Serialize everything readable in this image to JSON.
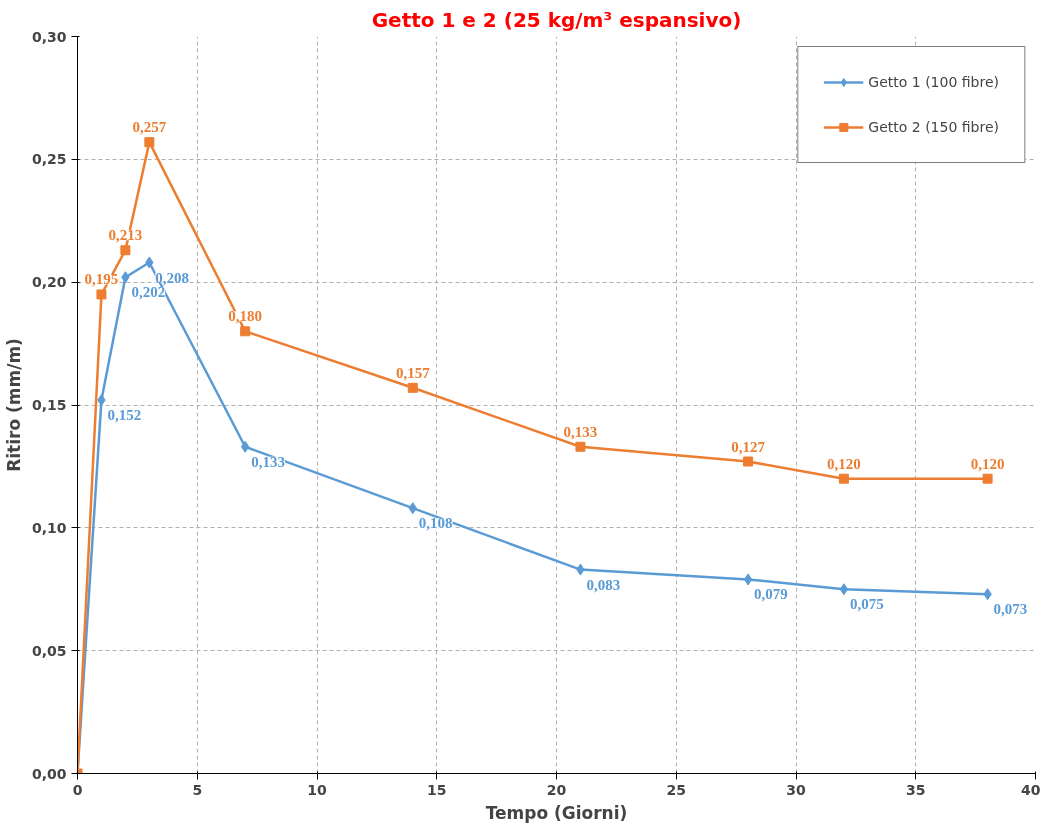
{
  "chart_data": {
    "type": "line",
    "title": "Getto 1 e 2 (25 kg/m³ espansivo)",
    "xlabel": "Tempo (Giorni)",
    "ylabel": "Ritiro (mm/m)",
    "x": [
      0,
      1,
      2,
      3,
      7,
      14,
      21,
      28,
      32,
      38
    ],
    "series": [
      {
        "name": "Getto 1 (100 fibre)",
        "color": "#5b9bd5",
        "marker": "diamond",
        "values": [
          0,
          0.152,
          0.202,
          0.208,
          0.133,
          0.108,
          0.083,
          0.079,
          0.075,
          0.073
        ],
        "value_labels": [
          null,
          "0,152",
          "0,202",
          "0,208",
          "0,133",
          "0,108",
          "0,083",
          "0,079",
          "0,075",
          "0,073"
        ]
      },
      {
        "name": "Getto 2 (150 fibre)",
        "color": "#ed7d31",
        "marker": "square",
        "values": [
          0,
          0.195,
          0.213,
          0.257,
          0.18,
          0.157,
          0.133,
          0.127,
          0.12,
          0.12
        ],
        "value_labels": [
          null,
          "0,195",
          "0,213",
          "0,257",
          "0,180",
          "0,157",
          "0,133",
          "0,127",
          "0,120",
          "0,120"
        ]
      }
    ],
    "xlim": [
      0,
      40
    ],
    "xticks": [
      0,
      5,
      10,
      15,
      20,
      25,
      30,
      35,
      40
    ],
    "ylim": [
      0,
      0.3
    ],
    "yticks": [
      {
        "value": 0,
        "label": "0,00"
      },
      {
        "value": 0.05,
        "label": "0,05"
      },
      {
        "value": 0.1,
        "label": "0,10"
      },
      {
        "value": 0.15,
        "label": "0,15"
      },
      {
        "value": 0.2,
        "label": "0,20"
      },
      {
        "value": 0.25,
        "label": "0,25"
      },
      {
        "value": 0.3,
        "label": "0,30"
      }
    ],
    "grid": true,
    "legend": "top right",
    "line_style": "solid"
  }
}
